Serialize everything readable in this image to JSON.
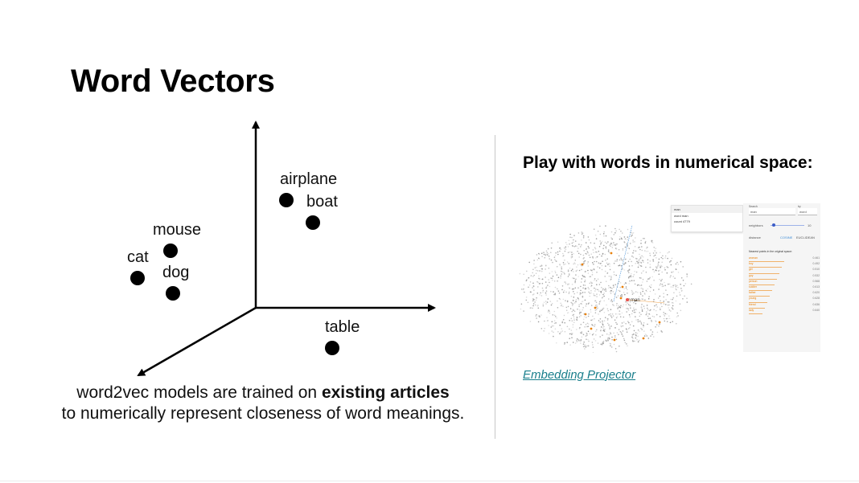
{
  "slide": {
    "title": "Word Vectors"
  },
  "diagram": {
    "words": [
      {
        "id": "airplane",
        "label": "airplane"
      },
      {
        "id": "boat",
        "label": "boat"
      },
      {
        "id": "mouse",
        "label": "mouse"
      },
      {
        "id": "cat",
        "label": "cat"
      },
      {
        "id": "dog",
        "label": "dog"
      },
      {
        "id": "table",
        "label": "table"
      }
    ]
  },
  "caption": {
    "line1_prefix": "word2vec models are trained on ",
    "line1_bold": "existing articles",
    "line2": "to numerically represent closeness of word meanings."
  },
  "right": {
    "subtitle": "Play with words in numerical space:",
    "link_text": "Embedding Projector",
    "screenshot": {
      "point_label": "man",
      "search_label": "Search",
      "search_value": "man",
      "by_label": "by",
      "by_value": "word",
      "neighbors_label": "neighbors",
      "neighbors_value": "10",
      "distance_label": "distance",
      "distance_cosine": "COSINE",
      "distance_euclidean": "EUCLIDEAN",
      "nn_header": "Nearest points in the original space:",
      "panel_header": "man",
      "panel_rows": [
        "word  man",
        "count  4779"
      ],
      "neighbors": [
        {
          "word": "woman",
          "value": "0.461"
        },
        {
          "word": "boy",
          "value": "0.492"
        },
        {
          "word": "girl",
          "value": "0.510"
        },
        {
          "word": "guy",
          "value": "0.532"
        },
        {
          "word": "person",
          "value": "0.568"
        },
        {
          "word": "soldier",
          "value": "0.613"
        },
        {
          "word": "father",
          "value": "0.620"
        },
        {
          "word": "young",
          "value": "0.628"
        },
        {
          "word": "friend",
          "value": "0.636"
        },
        {
          "word": "lady",
          "value": "0.640"
        }
      ]
    }
  }
}
